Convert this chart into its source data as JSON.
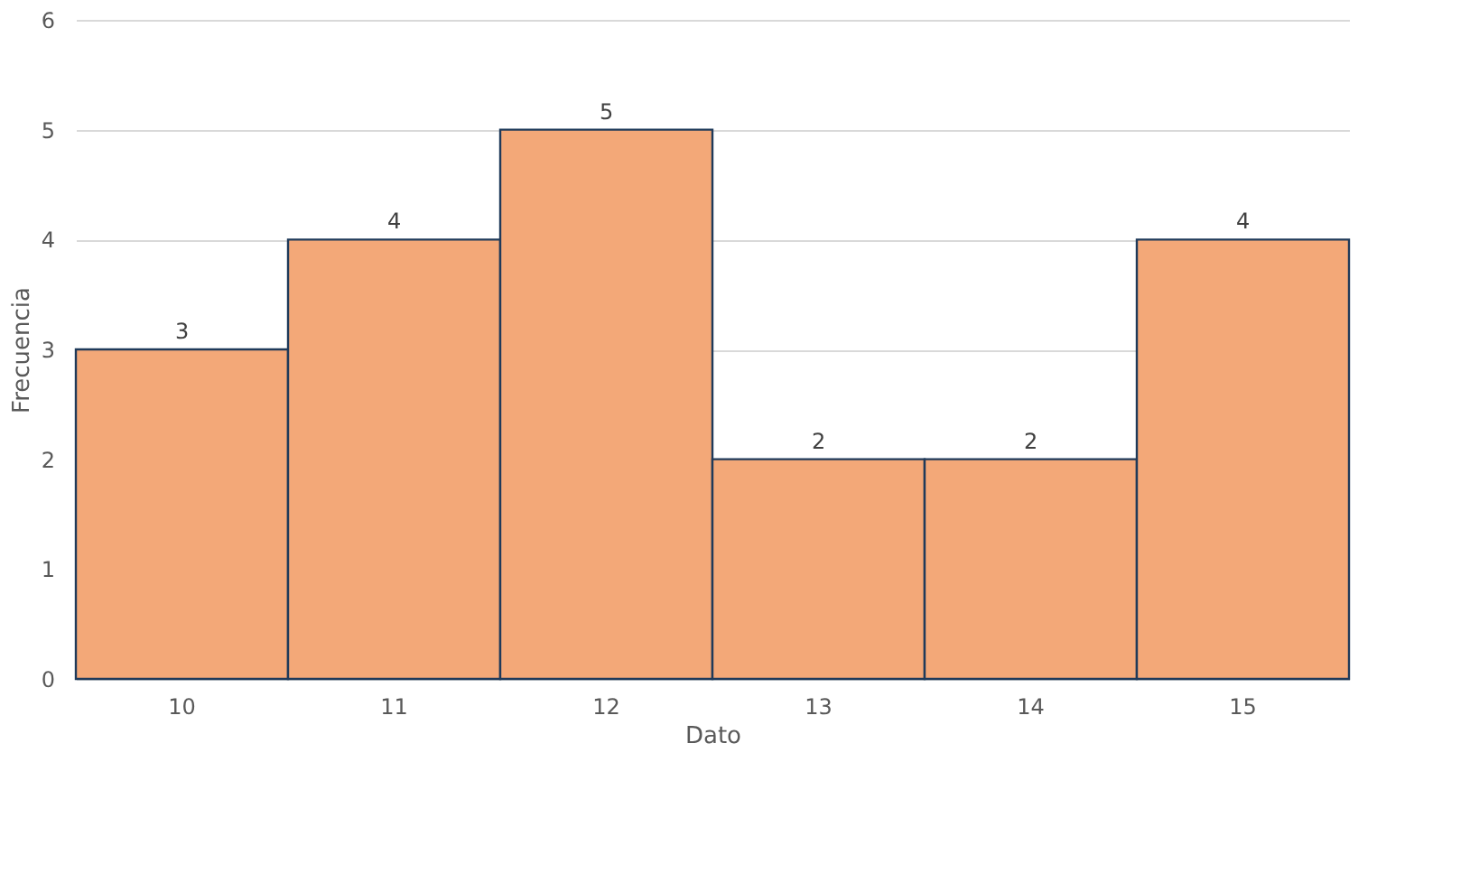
{
  "chart_data": {
    "type": "bar",
    "xlabel": "Dato",
    "ylabel": "Frecuencia",
    "categories": [
      "10",
      "11",
      "12",
      "13",
      "14",
      "15"
    ],
    "values": [
      3,
      4,
      5,
      2,
      2,
      4
    ],
    "color": "#f3a878",
    "ylim": [
      0,
      6
    ],
    "yticks": [
      0,
      1,
      2,
      3,
      4,
      5,
      6
    ],
    "grid": "y",
    "data_labels": true
  }
}
